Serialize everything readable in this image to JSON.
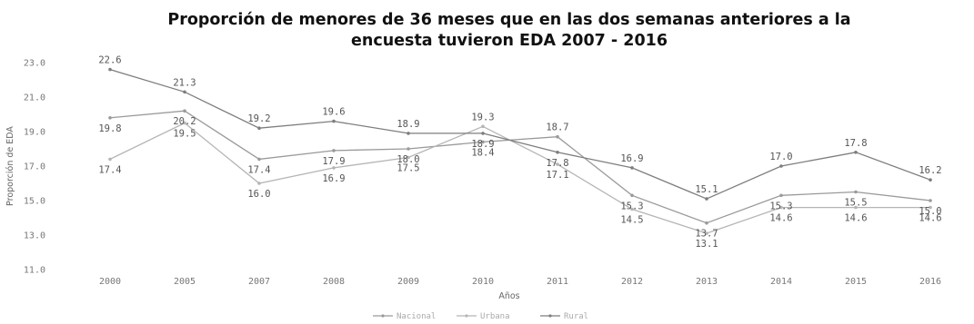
{
  "chart_data": {
    "type": "line",
    "title_line1": "Proporción de menores de 36 meses que en las dos semanas anteriores a la",
    "title_line2": "encuesta tuvieron EDA 2007 - 2016",
    "xlabel": "Años",
    "ylabel": "Proporción de EDA",
    "categories": [
      "2000",
      "2005",
      "2007",
      "2008",
      "2009",
      "2010",
      "2011",
      "2012",
      "2013",
      "2014",
      "2015",
      "2016"
    ],
    "ylim": [
      11,
      23
    ],
    "yticks": [
      "11.0",
      "13.0",
      "15.0",
      "17.0",
      "19.0",
      "21.0",
      "23.0"
    ],
    "grid": false,
    "legend_position": "bottom-center",
    "series": [
      {
        "name": "Nacional",
        "color": "#9a9a9a",
        "values": [
          19.8,
          20.2,
          17.4,
          17.9,
          18.0,
          18.4,
          18.7,
          15.3,
          13.7,
          15.3,
          15.5,
          15.0
        ],
        "labels": [
          "19.8",
          "20.2",
          "17.4",
          "17.9",
          "18.0",
          "18.4",
          "18.7",
          "15.3",
          "13.7",
          "15.3",
          "15.5",
          "15.0"
        ]
      },
      {
        "name": "Urbana",
        "color": "#b5b5b5",
        "values": [
          17.4,
          19.5,
          16.0,
          16.9,
          17.5,
          19.3,
          17.1,
          14.5,
          13.1,
          14.6,
          14.6,
          14.6
        ],
        "labels": [
          "17.4",
          "19.5",
          "16.0",
          "16.9",
          "17.5",
          "19.3",
          "17.1",
          "14.5",
          "13.1",
          "14.6",
          "14.6",
          "14.6"
        ]
      },
      {
        "name": "Rural",
        "color": "#7e7e7e",
        "values": [
          22.6,
          21.3,
          19.2,
          19.6,
          18.9,
          18.9,
          17.8,
          16.9,
          15.1,
          17.0,
          17.8,
          16.2
        ],
        "labels": [
          "22.6",
          "21.3",
          "19.2",
          "19.6",
          "18.9",
          "18.9",
          "17.8",
          "16.9",
          "15.1",
          "17.0",
          "17.8",
          "16.2"
        ]
      }
    ]
  }
}
